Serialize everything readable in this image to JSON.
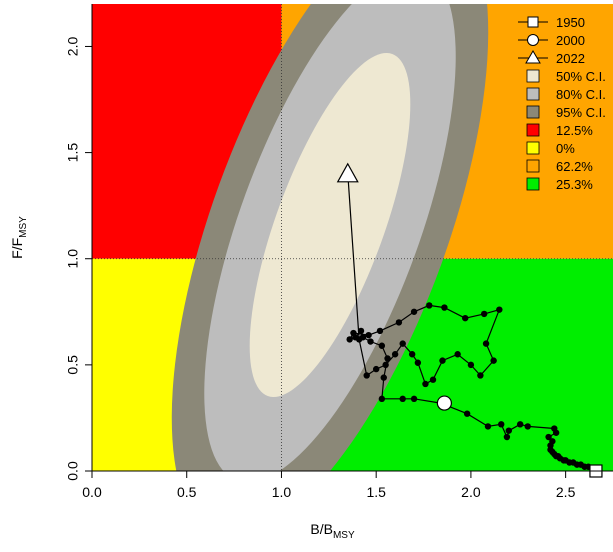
{
  "chart_data": {
    "type": "scatter",
    "title": "",
    "xlabel": {
      "main": "B/B",
      "sub": "MSY"
    },
    "ylabel": {
      "main": "F/F",
      "sub": "MSY"
    },
    "xlim": [
      0,
      2.75
    ],
    "ylim": [
      0,
      2.2
    ],
    "xticks": [
      "0.0",
      "0.5",
      "1.0",
      "1.5",
      "2.0",
      "2.5"
    ],
    "yticks": [
      "0.0",
      "0.5",
      "1.0",
      "1.5",
      "2.0"
    ],
    "reference_lines": {
      "x": 1.0,
      "y": 1.0
    },
    "quadrants": [
      {
        "name": "top-left",
        "color": "#ff0000",
        "percent": "12.5%"
      },
      {
        "name": "bottom-left",
        "color": "#ffff00",
        "percent": "0%"
      },
      {
        "name": "top-right",
        "color": "#ffa500",
        "percent": "62.2%"
      },
      {
        "name": "bottom-right",
        "color": "#00ee00",
        "percent": "25.3%"
      }
    ],
    "confidence_regions": [
      {
        "label": "95% C.I.",
        "color": "#8b8878"
      },
      {
        "label": "80% C.I.",
        "color": "#bdbdbd"
      },
      {
        "label": "50% C.I.",
        "color": "#eee8d2"
      }
    ],
    "trajectory": {
      "x": [
        2.66,
        2.62,
        2.6,
        2.58,
        2.56,
        2.54,
        2.52,
        2.5,
        2.49,
        2.47,
        2.46,
        2.45,
        2.44,
        2.43,
        2.42,
        2.42,
        2.43,
        2.41,
        2.45,
        2.44,
        2.3,
        2.26,
        2.2,
        2.19,
        2.16,
        2.09,
        1.98,
        1.84,
        1.7,
        1.64,
        1.53,
        1.54,
        1.56,
        1.53,
        1.47,
        1.43,
        1.42,
        1.39,
        1.36,
        1.38,
        1.46,
        1.52,
        1.62,
        1.7,
        1.78,
        1.86,
        1.97,
        2.07,
        2.15,
        2.08,
        2.12,
        2.05,
        2.0,
        1.93,
        1.85,
        1.8,
        1.76,
        1.72,
        1.69,
        1.64,
        1.6,
        1.55,
        1.5,
        1.45,
        1.41,
        1.35
      ],
      "y": [
        0.0,
        0.02,
        0.02,
        0.03,
        0.03,
        0.04,
        0.04,
        0.05,
        0.05,
        0.06,
        0.07,
        0.07,
        0.08,
        0.09,
        0.1,
        0.12,
        0.14,
        0.16,
        0.18,
        0.2,
        0.21,
        0.22,
        0.19,
        0.16,
        0.22,
        0.21,
        0.27,
        0.32,
        0.34,
        0.34,
        0.34,
        0.44,
        0.53,
        0.59,
        0.61,
        0.63,
        0.66,
        0.63,
        0.62,
        0.65,
        0.64,
        0.66,
        0.7,
        0.75,
        0.78,
        0.77,
        0.72,
        0.74,
        0.76,
        0.6,
        0.52,
        0.45,
        0.5,
        0.55,
        0.52,
        0.43,
        0.41,
        0.51,
        0.55,
        0.6,
        0.55,
        0.5,
        0.48,
        0.45,
        0.62,
        1.4
      ],
      "markers": [
        {
          "label": "1950",
          "shape": "square",
          "x": 2.66,
          "y": 0.0
        },
        {
          "label": "2000",
          "shape": "circle",
          "x": 1.86,
          "y": 0.32
        },
        {
          "label": "2022",
          "shape": "triangle",
          "x": 1.35,
          "y": 1.4
        }
      ]
    },
    "legend": {
      "position": "top-right",
      "entries": [
        {
          "label": "1950",
          "kind": "line-square"
        },
        {
          "label": "2000",
          "kind": "line-circle"
        },
        {
          "label": "2022",
          "kind": "line-triangle"
        },
        {
          "label": "50% C.I.",
          "kind": "box",
          "color": "#eee8d2"
        },
        {
          "label": "80% C.I.",
          "kind": "box",
          "color": "#bdbdbd"
        },
        {
          "label": "95% C.I.",
          "kind": "box",
          "color": "#8b8878"
        },
        {
          "label": "12.5%",
          "kind": "box",
          "color": "#ff0000"
        },
        {
          "label": "0%",
          "kind": "box",
          "color": "#ffff00"
        },
        {
          "label": "62.2%",
          "kind": "box",
          "color": "#ffa500"
        },
        {
          "label": "25.3%",
          "kind": "box",
          "color": "#00ee00"
        }
      ]
    }
  }
}
